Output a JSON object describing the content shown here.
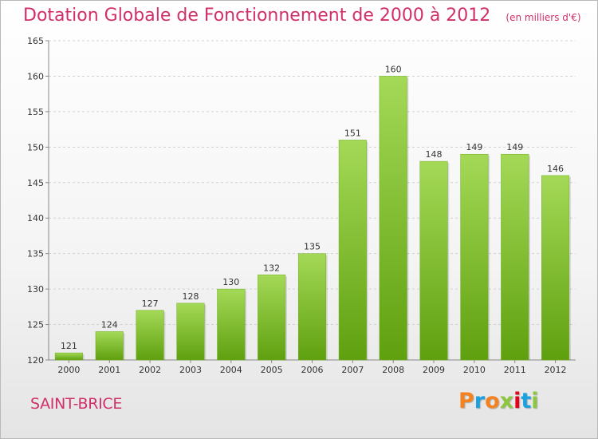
{
  "title": "Dotation Globale de Fonctionnement de 2000 à 2012",
  "unit": "(en milliers d'€)",
  "commune": "SAINT-BRICE",
  "brand": "Proxiti",
  "brand_colors": [
    "#f58220",
    "#1ba1e2",
    "#f58220",
    "#8dc63f",
    "#e2001a",
    "#1ba1e2",
    "#8dc63f"
  ],
  "colors": {
    "bar_light": "#a4d957",
    "bar_dark": "#5fa00f",
    "title": "#d0306a"
  },
  "chart_data": {
    "type": "bar",
    "categories": [
      "2000",
      "2001",
      "2002",
      "2003",
      "2004",
      "2005",
      "2006",
      "2007",
      "2008",
      "2009",
      "2010",
      "2011",
      "2012"
    ],
    "values": [
      121,
      124,
      127,
      128,
      130,
      132,
      135,
      151,
      160,
      148,
      149,
      149,
      146
    ],
    "ylim": [
      120,
      165
    ],
    "yticks": [
      120,
      125,
      130,
      135,
      140,
      145,
      150,
      155,
      160,
      165
    ],
    "grid": true,
    "legend": false
  }
}
